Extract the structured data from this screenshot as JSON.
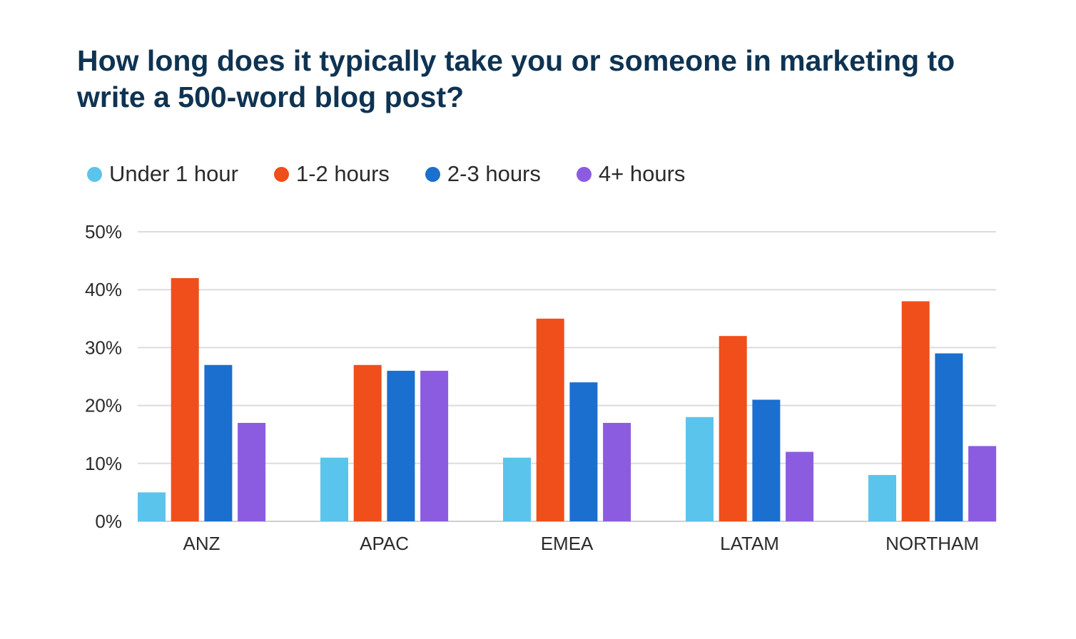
{
  "chart_data": {
    "type": "bar",
    "title": "How long does it typically take you or someone in marketing to write a 500-word blog post?",
    "xlabel": "",
    "ylabel": "",
    "categories": [
      "ANZ",
      "APAC",
      "EMEA",
      "LATAM",
      "NORTHAM"
    ],
    "series": [
      {
        "name": "Under 1 hour",
        "color": "#5bc4ec",
        "values": [
          5,
          11,
          11,
          18,
          8
        ]
      },
      {
        "name": "1-2 hours",
        "color": "#f04e1a",
        "values": [
          42,
          27,
          35,
          32,
          38
        ]
      },
      {
        "name": "2-3 hours",
        "color": "#1a6fcf",
        "values": [
          27,
          26,
          24,
          21,
          29
        ]
      },
      {
        "name": "4+ hours",
        "color": "#8c5ce0",
        "values": [
          17,
          26,
          17,
          12,
          13
        ]
      }
    ],
    "ylim": [
      0,
      50
    ],
    "yticks": [
      "0%",
      "10%",
      "20%",
      "30%",
      "40%",
      "50%"
    ],
    "grid": true,
    "legend": "top-left"
  }
}
